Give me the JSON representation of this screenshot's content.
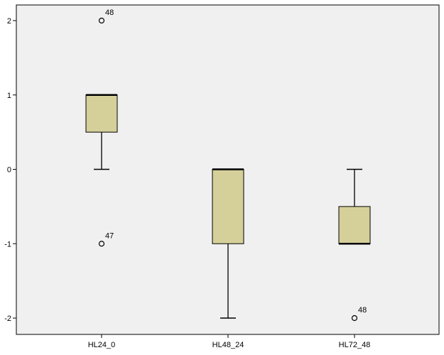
{
  "chart_data": {
    "type": "boxplot",
    "ylim": [
      -2.2,
      2.2
    ],
    "yticks": [
      2,
      1,
      0,
      -1,
      -2
    ],
    "grid": false,
    "colors": {
      "plot_background": "#f0f0f0",
      "box_fill": "#d5d09a",
      "line": "#000000"
    },
    "categories": [
      {
        "name": "HL24_0",
        "whisker_low": 0,
        "q1": 0.5,
        "median": 1,
        "q3": 1,
        "whisker_high": 1,
        "outliers": [
          {
            "value": 2,
            "label": "48"
          },
          {
            "value": -1,
            "label": "47"
          }
        ]
      },
      {
        "name": "HL48_24",
        "whisker_low": -2,
        "q1": -1,
        "median": 0,
        "q3": 0,
        "whisker_high": 0,
        "outliers": []
      },
      {
        "name": "HL72_48",
        "whisker_low": -1,
        "q1": -1,
        "median": -1,
        "q3": -0.5,
        "whisker_high": 0,
        "outliers": [
          {
            "value": -2,
            "label": "48"
          }
        ]
      }
    ]
  }
}
